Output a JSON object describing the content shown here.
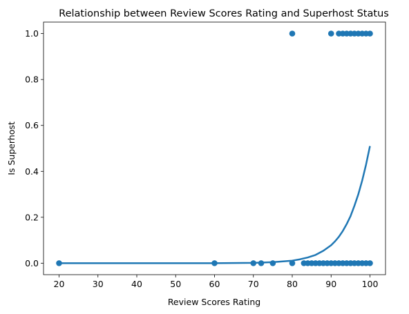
{
  "chart_data": {
    "type": "scatter",
    "title": "Relationship between Review Scores Rating and Superhost Status",
    "xlabel": "Review Scores Rating",
    "ylabel": "Is Superhost",
    "xlim": [
      16.0,
      104.0
    ],
    "ylim": [
      -0.05,
      1.05
    ],
    "xticks": [
      20,
      30,
      40,
      50,
      60,
      70,
      80,
      90,
      100
    ],
    "yticks": [
      0.0,
      0.2,
      0.4,
      0.6,
      0.8,
      1.0
    ],
    "xtick_labels": [
      "20",
      "30",
      "40",
      "50",
      "60",
      "70",
      "80",
      "90",
      "100"
    ],
    "ytick_labels": [
      "0.0",
      "0.2",
      "0.4",
      "0.6",
      "0.8",
      "1.0"
    ],
    "grid": false,
    "colors": {
      "series": "#1f77b4"
    },
    "series": [
      {
        "kind": "scatter",
        "points": [
          [
            20,
            0
          ],
          [
            60,
            0
          ],
          [
            70,
            0
          ],
          [
            72,
            0
          ],
          [
            75,
            0
          ],
          [
            80,
            0
          ],
          [
            83,
            0
          ],
          [
            84,
            0
          ],
          [
            85,
            0
          ],
          [
            86,
            0
          ],
          [
            87,
            0
          ],
          [
            88,
            0
          ],
          [
            89,
            0
          ],
          [
            90,
            0
          ],
          [
            91,
            0
          ],
          [
            92,
            0
          ],
          [
            93,
            0
          ],
          [
            94,
            0
          ],
          [
            95,
            0
          ],
          [
            96,
            0
          ],
          [
            97,
            0
          ],
          [
            98,
            0
          ],
          [
            99,
            0
          ],
          [
            100,
            0
          ],
          [
            80,
            1
          ],
          [
            90,
            1
          ],
          [
            92,
            1
          ],
          [
            93,
            1
          ],
          [
            94,
            1
          ],
          [
            95,
            1
          ],
          [
            96,
            1
          ],
          [
            97,
            1
          ],
          [
            98,
            1
          ],
          [
            99,
            1
          ],
          [
            100,
            1
          ]
        ]
      },
      {
        "kind": "line",
        "points": [
          [
            20,
            0.0
          ],
          [
            60,
            0.0
          ],
          [
            70,
            0.0016
          ],
          [
            75,
            0.0043
          ],
          [
            80,
            0.011
          ],
          [
            82,
            0.017
          ],
          [
            84,
            0.025
          ],
          [
            86,
            0.036
          ],
          [
            88,
            0.054
          ],
          [
            90,
            0.078
          ],
          [
            91,
            0.095
          ],
          [
            92,
            0.115
          ],
          [
            93,
            0.14
          ],
          [
            94,
            0.17
          ],
          [
            95,
            0.205
          ],
          [
            96,
            0.25
          ],
          [
            97,
            0.3
          ],
          [
            98,
            0.36
          ],
          [
            99,
            0.43
          ],
          [
            100,
            0.51
          ]
        ]
      }
    ]
  }
}
